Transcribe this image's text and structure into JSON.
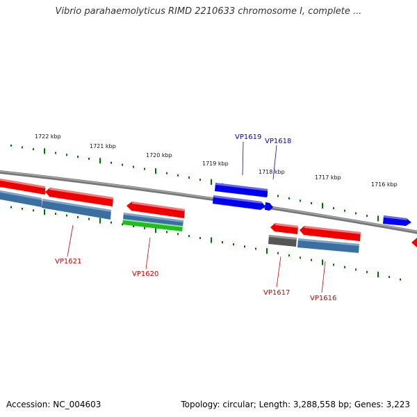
{
  "title": "Vibrio parahaemolyticus RIMD 2210633 chromosome I, complete ...",
  "footer": {
    "accession": "Accession: NC_004603",
    "summary": "Topology: circular; Length: 3,288,558 bp; Genes: 3,223"
  },
  "colors": {
    "forward_gene": "#0000ee",
    "reverse_gene": "#ee0000",
    "label_forward": "#0000cc",
    "label_reverse": "#cc0000",
    "tick": "#007000",
    "backbone": "#888888"
  },
  "scale_labels": [
    "1722 kbp",
    "1721 kbp",
    "1720 kbp",
    "1719 kbp",
    "1718 kbp",
    "1717 kbp",
    "1716 kbp"
  ],
  "gene_labels": {
    "forward": [
      "VP1619",
      "VP1618"
    ],
    "reverse": [
      "VP1621",
      "VP1620",
      "VP1617",
      "VP1616"
    ]
  }
}
